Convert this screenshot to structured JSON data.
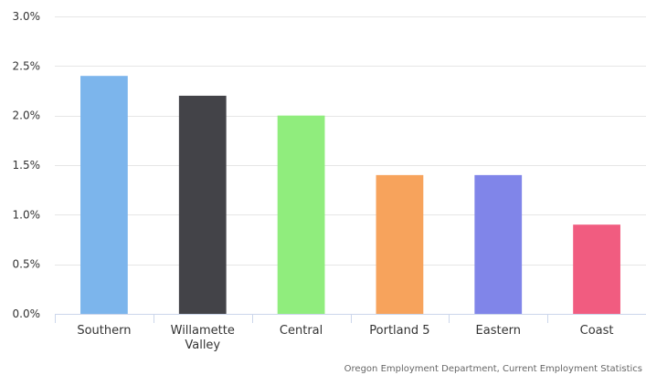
{
  "chart_data": {
    "type": "bar",
    "categories": [
      "Southern",
      "Willamette Valley",
      "Central",
      "Portland 5",
      "Eastern",
      "Coast"
    ],
    "category_lines": [
      [
        "Southern"
      ],
      [
        "Willamette",
        "Valley"
      ],
      [
        "Central"
      ],
      [
        "Portland 5"
      ],
      [
        "Eastern"
      ],
      [
        "Coast"
      ]
    ],
    "values": [
      2.4,
      2.2,
      2.0,
      1.4,
      1.4,
      0.9
    ],
    "colors": [
      "#7cb5ec",
      "#434348",
      "#90ed7d",
      "#f7a35c",
      "#8085e9",
      "#f15c80"
    ],
    "ylim": [
      0,
      3.0
    ],
    "yticks": [
      0.0,
      0.5,
      1.0,
      1.5,
      2.0,
      2.5,
      3.0
    ],
    "ytick_labels": [
      "0.0%",
      "0.5%",
      "1.0%",
      "1.5%",
      "2.0%",
      "2.5%",
      "3.0%"
    ],
    "grid": true,
    "legend": "none",
    "title": "",
    "xlabel": "",
    "ylabel": ""
  },
  "credits": "Oregon Employment Department, Current Employment Statistics"
}
